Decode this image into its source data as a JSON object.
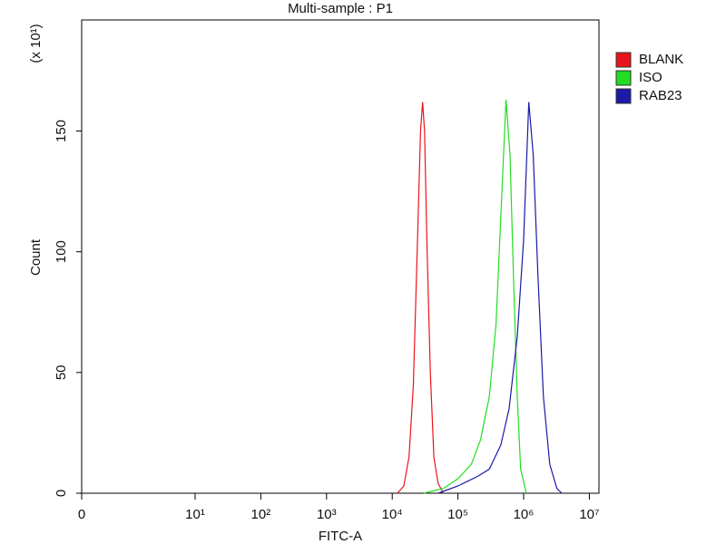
{
  "chart_data": {
    "type": "line",
    "title": "Multi-sample : P1",
    "x_label": "FITC-A",
    "y_label": "Count",
    "y_unit_label": "(x 10¹)",
    "xscale": "biexponential",
    "xlim": [
      0,
      14000000
    ],
    "xticks": [
      0,
      {
        "value": 10,
        "label": "10¹"
      },
      {
        "value": 100,
        "label": "10²"
      },
      {
        "value": 1000,
        "label": "10³"
      },
      {
        "value": 10000,
        "label": "10⁴"
      },
      {
        "value": 100000,
        "label": "10⁵"
      },
      {
        "value": 1000000,
        "label": "10⁶"
      },
      {
        "value": 10000000,
        "label": "10⁷"
      }
    ],
    "ylim": [
      0,
      196
    ],
    "yticks": [
      0,
      50,
      100,
      150
    ],
    "legend": "right",
    "series": [
      {
        "name": "BLANK",
        "color": "#e8141c",
        "x": [
          12000,
          15000,
          18000,
          21000,
          24000,
          27000,
          29000,
          31000,
          34000,
          38000,
          43000,
          50000,
          60000
        ],
        "values": [
          0,
          3,
          15,
          45,
          100,
          150,
          162,
          150,
          100,
          50,
          15,
          4,
          0
        ]
      },
      {
        "name": "ISO",
        "color": "#22dd22",
        "x": [
          30000,
          60000,
          100000,
          160000,
          220000,
          300000,
          380000,
          450000,
          540000,
          620000,
          700000,
          800000,
          900000,
          1100000
        ],
        "values": [
          0,
          2,
          6,
          12,
          22,
          40,
          70,
          115,
          163,
          140,
          90,
          40,
          10,
          0
        ]
      },
      {
        "name": "RAB23",
        "color": "#1a1aa8",
        "x": [
          50000,
          100000,
          200000,
          300000,
          450000,
          600000,
          800000,
          1000000,
          1200000,
          1400000,
          1650000,
          2000000,
          2500000,
          3200000,
          3800000
        ],
        "values": [
          0,
          3,
          7,
          10,
          20,
          35,
          65,
          105,
          162,
          140,
          90,
          40,
          12,
          2,
          0
        ]
      }
    ]
  }
}
